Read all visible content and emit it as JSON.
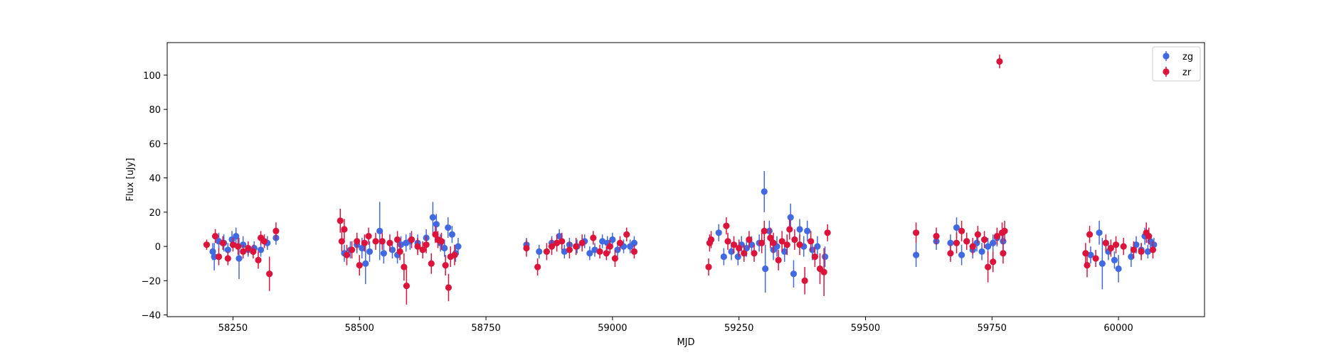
{
  "chart_data": {
    "type": "scatter",
    "title": "",
    "xlabel": "MJD",
    "ylabel": "Flux [uJy]",
    "xlim": [
      58120,
      60170
    ],
    "ylim": [
      -41,
      119
    ],
    "xticks": [
      58250,
      58500,
      58750,
      59000,
      59250,
      59500,
      59750,
      60000
    ],
    "yticks": [
      -40,
      -20,
      0,
      20,
      40,
      60,
      80,
      100
    ],
    "grid": false,
    "legend_position": "top-right",
    "series": [
      {
        "name": "zg",
        "color": "#4169E1",
        "points": [
          [
            58210,
            -3,
            5
          ],
          [
            58213,
            -6,
            8
          ],
          [
            58222,
            3,
            5
          ],
          [
            58232,
            2,
            5
          ],
          [
            58240,
            -2,
            4
          ],
          [
            58248,
            4,
            5
          ],
          [
            58256,
            6,
            5
          ],
          [
            58262,
            -7,
            12
          ],
          [
            58270,
            1,
            5
          ],
          [
            58280,
            -2,
            4
          ],
          [
            58292,
            -1,
            4
          ],
          [
            58305,
            -2,
            4
          ],
          [
            58318,
            2,
            4
          ],
          [
            58335,
            5,
            4
          ],
          [
            58470,
            -4,
            5
          ],
          [
            58482,
            -2,
            5
          ],
          [
            58495,
            1,
            5
          ],
          [
            58505,
            -1,
            6
          ],
          [
            58512,
            -10,
            12
          ],
          [
            58520,
            -3,
            6
          ],
          [
            58540,
            9,
            17
          ],
          [
            58548,
            -4,
            6
          ],
          [
            58565,
            -2,
            5
          ],
          [
            58575,
            -5,
            5
          ],
          [
            58582,
            1,
            5
          ],
          [
            58592,
            2,
            5
          ],
          [
            58600,
            3,
            5
          ],
          [
            58615,
            2,
            5
          ],
          [
            58632,
            5,
            5
          ],
          [
            58645,
            17,
            9
          ],
          [
            58652,
            13,
            6
          ],
          [
            58660,
            2,
            5
          ],
          [
            58668,
            -1,
            5
          ],
          [
            58675,
            11,
            6
          ],
          [
            58683,
            7,
            5
          ],
          [
            58690,
            -4,
            5
          ],
          [
            58695,
            0,
            5
          ],
          [
            58830,
            1,
            4
          ],
          [
            58855,
            -3,
            4
          ],
          [
            58880,
            2,
            4
          ],
          [
            58895,
            6,
            4
          ],
          [
            58905,
            -3,
            4
          ],
          [
            58915,
            1,
            4
          ],
          [
            58930,
            0,
            4
          ],
          [
            58945,
            3,
            4
          ],
          [
            58955,
            -4,
            4
          ],
          [
            58965,
            -2,
            4
          ],
          [
            58980,
            3,
            4
          ],
          [
            58990,
            2,
            4
          ],
          [
            59000,
            4,
            4
          ],
          [
            59010,
            -2,
            4
          ],
          [
            59022,
            0,
            4
          ],
          [
            59035,
            0,
            4
          ],
          [
            59043,
            2,
            4
          ],
          [
            59210,
            8,
            5
          ],
          [
            59220,
            -6,
            5
          ],
          [
            59235,
            -3,
            5
          ],
          [
            59248,
            -6,
            5
          ],
          [
            59255,
            1,
            5
          ],
          [
            59265,
            -1,
            5
          ],
          [
            59275,
            1,
            5
          ],
          [
            59290,
            2,
            5
          ],
          [
            59300,
            32,
            12
          ],
          [
            59302,
            -13,
            14
          ],
          [
            59310,
            9,
            6
          ],
          [
            59318,
            -2,
            6
          ],
          [
            59325,
            0,
            6
          ],
          [
            59340,
            -3,
            6
          ],
          [
            59352,
            17,
            8
          ],
          [
            59358,
            -16,
            8
          ],
          [
            59370,
            10,
            6
          ],
          [
            59378,
            0,
            6
          ],
          [
            59385,
            9,
            6
          ],
          [
            59395,
            -2,
            6
          ],
          [
            59405,
            0,
            6
          ],
          [
            59420,
            -6,
            6
          ],
          [
            59600,
            -5,
            7
          ],
          [
            59640,
            3,
            5
          ],
          [
            59668,
            2,
            5
          ],
          [
            59680,
            11,
            6
          ],
          [
            59690,
            -5,
            6
          ],
          [
            59700,
            3,
            5
          ],
          [
            59712,
            -2,
            5
          ],
          [
            59720,
            2,
            5
          ],
          [
            59730,
            -3,
            5
          ],
          [
            59742,
            0,
            5
          ],
          [
            59752,
            2,
            5
          ],
          [
            59760,
            5,
            5
          ],
          [
            59772,
            3,
            5
          ],
          [
            59945,
            -5,
            5
          ],
          [
            59962,
            8,
            7
          ],
          [
            59968,
            -10,
            15
          ],
          [
            59980,
            -3,
            5
          ],
          [
            59992,
            -8,
            5
          ],
          [
            60000,
            -13,
            8
          ],
          [
            60025,
            -6,
            6
          ],
          [
            60035,
            1,
            5
          ],
          [
            60045,
            -2,
            4
          ],
          [
            60052,
            6,
            5
          ],
          [
            60058,
            -3,
            4
          ],
          [
            60063,
            3,
            4
          ],
          [
            60070,
            1,
            4
          ]
        ]
      },
      {
        "name": "zr",
        "color": "#DC143C",
        "points": [
          [
            58198,
            1,
            3
          ],
          [
            58215,
            6,
            4
          ],
          [
            58222,
            -6,
            5
          ],
          [
            58230,
            2,
            4
          ],
          [
            58240,
            -7,
            4
          ],
          [
            58250,
            1,
            4
          ],
          [
            58260,
            0,
            5
          ],
          [
            58270,
            -3,
            4
          ],
          [
            58280,
            -1,
            4
          ],
          [
            58290,
            -3,
            4
          ],
          [
            58300,
            -8,
            5
          ],
          [
            58305,
            5,
            4
          ],
          [
            58312,
            3,
            4
          ],
          [
            58322,
            -16,
            10
          ],
          [
            58335,
            9,
            5
          ],
          [
            58462,
            15,
            7
          ],
          [
            58465,
            3,
            6
          ],
          [
            58470,
            10,
            6
          ],
          [
            58475,
            -5,
            6
          ],
          [
            58485,
            -2,
            5
          ],
          [
            58495,
            3,
            5
          ],
          [
            58500,
            -11,
            6
          ],
          [
            58510,
            2,
            5
          ],
          [
            58518,
            6,
            5
          ],
          [
            58532,
            3,
            5
          ],
          [
            58545,
            3,
            5
          ],
          [
            58560,
            2,
            5
          ],
          [
            58575,
            4,
            5
          ],
          [
            58580,
            -3,
            5
          ],
          [
            58588,
            -12,
            8
          ],
          [
            58593,
            -23,
            11
          ],
          [
            58603,
            4,
            5
          ],
          [
            58615,
            0,
            5
          ],
          [
            58625,
            -2,
            5
          ],
          [
            58632,
            1,
            5
          ],
          [
            58642,
            -10,
            6
          ],
          [
            58650,
            7,
            5
          ],
          [
            58655,
            4,
            5
          ],
          [
            58662,
            3,
            5
          ],
          [
            58670,
            -11,
            6
          ],
          [
            58676,
            -24,
            8
          ],
          [
            58680,
            -6,
            6
          ],
          [
            58688,
            -5,
            6
          ],
          [
            58830,
            -1,
            5
          ],
          [
            58852,
            -12,
            5
          ],
          [
            58870,
            -3,
            5
          ],
          [
            58880,
            0,
            5
          ],
          [
            58890,
            2,
            5
          ],
          [
            58900,
            3,
            5
          ],
          [
            58915,
            -2,
            5
          ],
          [
            58928,
            0,
            5
          ],
          [
            58940,
            2,
            5
          ],
          [
            58962,
            5,
            4
          ],
          [
            58975,
            -3,
            4
          ],
          [
            58988,
            -4,
            4
          ],
          [
            58995,
            0,
            4
          ],
          [
            59005,
            -7,
            5
          ],
          [
            59015,
            2,
            4
          ],
          [
            59028,
            7,
            4
          ],
          [
            59043,
            -3,
            4
          ],
          [
            59190,
            -12,
            5
          ],
          [
            59192,
            2,
            5
          ],
          [
            59195,
            4,
            5
          ],
          [
            59225,
            12,
            5
          ],
          [
            59228,
            3,
            5
          ],
          [
            59240,
            1,
            5
          ],
          [
            59250,
            -1,
            5
          ],
          [
            59260,
            -4,
            5
          ],
          [
            59270,
            4,
            5
          ],
          [
            59280,
            -4,
            5
          ],
          [
            59295,
            2,
            6
          ],
          [
            59300,
            9,
            6
          ],
          [
            59312,
            5,
            6
          ],
          [
            59318,
            2,
            6
          ],
          [
            59328,
            -8,
            6
          ],
          [
            59335,
            3,
            6
          ],
          [
            59345,
            1,
            6
          ],
          [
            59350,
            10,
            6
          ],
          [
            59360,
            4,
            6
          ],
          [
            59370,
            1,
            6
          ],
          [
            59380,
            -20,
            8
          ],
          [
            59392,
            3,
            6
          ],
          [
            59400,
            -6,
            6
          ],
          [
            59410,
            -13,
            9
          ],
          [
            59418,
            -15,
            14
          ],
          [
            59425,
            8,
            5
          ],
          [
            59600,
            8,
            6
          ],
          [
            59640,
            6,
            5
          ],
          [
            59668,
            -4,
            5
          ],
          [
            59680,
            2,
            6
          ],
          [
            59690,
            9,
            6
          ],
          [
            59700,
            3,
            5
          ],
          [
            59712,
            0,
            5
          ],
          [
            59722,
            7,
            5
          ],
          [
            59735,
            4,
            5
          ],
          [
            59742,
            -12,
            9
          ],
          [
            59752,
            -9,
            6
          ],
          [
            59760,
            6,
            5
          ],
          [
            59765,
            108,
            4
          ],
          [
            59770,
            8,
            6
          ],
          [
            59772,
            -4,
            6
          ],
          [
            59775,
            9,
            6
          ],
          [
            59935,
            -4,
            6
          ],
          [
            59938,
            -11,
            7
          ],
          [
            59943,
            7,
            5
          ],
          [
            59955,
            -7,
            5
          ],
          [
            59975,
            2,
            5
          ],
          [
            59985,
            -1,
            5
          ],
          [
            59995,
            1,
            5
          ],
          [
            60010,
            0,
            5
          ],
          [
            60030,
            -2,
            5
          ],
          [
            60045,
            -3,
            5
          ],
          [
            60055,
            8,
            6
          ],
          [
            60060,
            6,
            5
          ],
          [
            60068,
            -2,
            5
          ]
        ]
      }
    ]
  }
}
